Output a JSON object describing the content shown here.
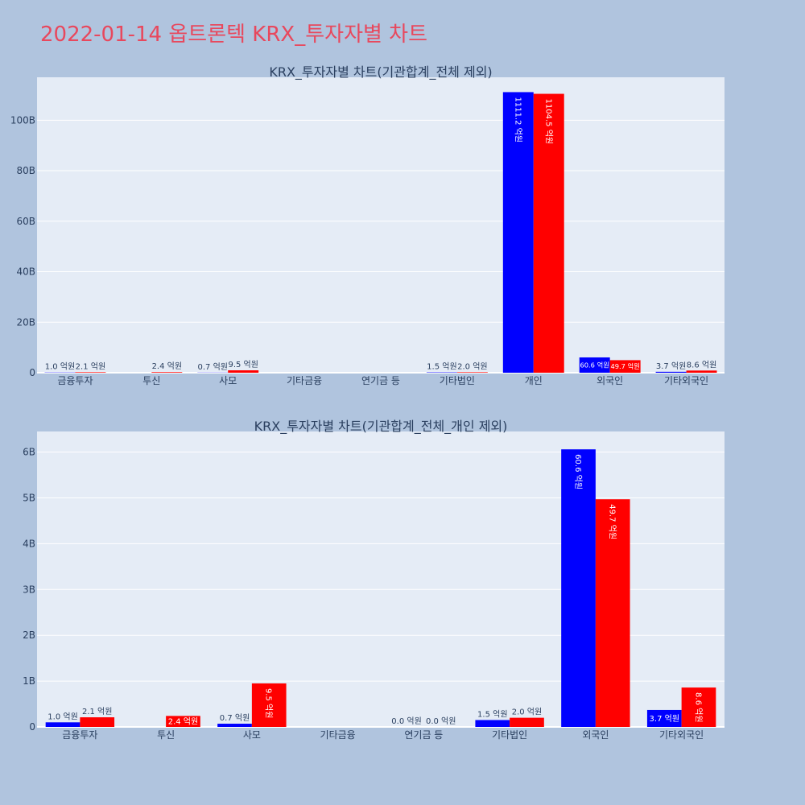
{
  "title": "2022-01-14 옵트론텍 KRX_투자자별 차트",
  "colors": {
    "background": "#b0c4de",
    "plot_bg": "#e5ecf6",
    "title": "#e8485d",
    "buy": "#0000ff",
    "sell": "#ff0000",
    "text": "#2a3f5f"
  },
  "chart_data": [
    {
      "type": "bar",
      "title": "KRX_투자자별 차트(기관합계_전체 제외)",
      "categories": [
        "금융투자",
        "투신",
        "사모",
        "기타금융",
        "연기금 등",
        "기타법인",
        "개인",
        "외국인",
        "기타외국인"
      ],
      "series": [
        {
          "color": "#0000ff",
          "values": [
            0.1,
            0,
            0.07,
            0,
            0,
            0.15,
            111.12,
            6.06,
            0.37
          ],
          "labels": [
            "1.0 억원",
            "",
            "0.7 억원",
            "",
            "",
            "1.5 억원",
            "1111.2 억원",
            "60.6 억원",
            "3.7 억원"
          ]
        },
        {
          "color": "#ff0000",
          "values": [
            0.21,
            0.24,
            0.95,
            0,
            0,
            0.2,
            110.45,
            4.97,
            0.86
          ],
          "labels": [
            "2.1 억원",
            "2.4 억원",
            "9.5 억원",
            "",
            "",
            "2.0 억원",
            "1104.5 억원",
            "49.7 억원",
            "8.6 억원"
          ]
        }
      ],
      "yticks": [
        "0",
        "20B",
        "40B",
        "60B",
        "80B",
        "100B"
      ],
      "ytick_values": [
        0,
        20,
        40,
        60,
        80,
        100
      ],
      "ylim": [
        0,
        117
      ],
      "grid": true
    },
    {
      "type": "bar",
      "title": "KRX_투자자별 차트(기관합계_전체_개인 제외)",
      "categories": [
        "금융투자",
        "투신",
        "사모",
        "기타금융",
        "연기금 등",
        "기타법인",
        "외국인",
        "기타외국인"
      ],
      "series": [
        {
          "color": "#0000ff",
          "values": [
            0.1,
            0,
            0.07,
            0,
            0,
            0.15,
            6.06,
            0.37
          ],
          "labels": [
            "1.0 억원",
            "",
            "0.7 억원",
            "",
            "0.0 억원",
            "1.5 억원",
            "60.6 억원",
            "3.7 억원"
          ]
        },
        {
          "color": "#ff0000",
          "values": [
            0.21,
            0.24,
            0.95,
            0,
            0,
            0.2,
            4.97,
            0.86
          ],
          "labels": [
            "2.1 억원",
            "2.4 억원",
            "9.5 억원",
            "",
            "0.0 억원",
            "2.0 억원",
            "49.7 억원",
            "8.6 억원"
          ]
        }
      ],
      "yticks": [
        "0",
        "1B",
        "2B",
        "3B",
        "4B",
        "5B",
        "6B"
      ],
      "ytick_values": [
        0,
        1,
        2,
        3,
        4,
        5,
        6
      ],
      "ylim": [
        0,
        6.45
      ],
      "grid": true
    }
  ]
}
